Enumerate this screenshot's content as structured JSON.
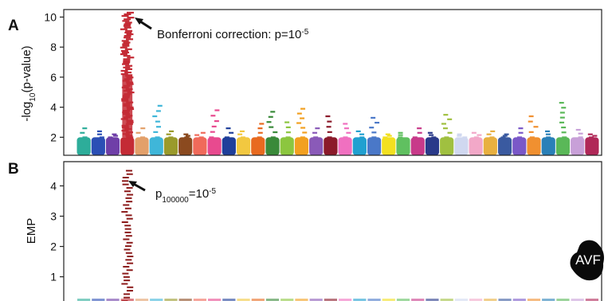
{
  "chart_data": [
    {
      "panel": "A",
      "type": "scatter",
      "subtype": "manhattan",
      "ylabel": "-log10(p-value)",
      "ylabel_parts": {
        "pre": "-log",
        "sub": "10",
        "post": "(p-value)"
      },
      "ylim": [
        0.8,
        10.5
      ],
      "yticks": [
        2,
        4,
        6,
        8,
        10
      ],
      "grid": false,
      "annotation": {
        "base": "Bonferroni correction: p=10",
        "sup": "-5"
      },
      "series": [
        {
          "color": "#2dad9a",
          "peak": 2.6
        },
        {
          "color": "#2b4fb5",
          "peak": 2.4
        },
        {
          "color": "#6f3fa8",
          "peak": 2.2
        },
        {
          "color": "#c42b35",
          "peak": 10.3
        },
        {
          "color": "#e3a06a",
          "peak": 2.6
        },
        {
          "color": "#3fb6d9",
          "peak": 4.1
        },
        {
          "color": "#9a9a2b",
          "peak": 2.4
        },
        {
          "color": "#8b4a1f",
          "peak": 2.2
        },
        {
          "color": "#f06a5a",
          "peak": 2.3
        },
        {
          "color": "#e84a8f",
          "peak": 3.8
        },
        {
          "color": "#1f3f9a",
          "peak": 2.6
        },
        {
          "color": "#f2c840",
          "peak": 2.4
        },
        {
          "color": "#e86a20",
          "peak": 2.9
        },
        {
          "color": "#3a8a3a",
          "peak": 3.7
        },
        {
          "color": "#8cc63f",
          "peak": 3.0
        },
        {
          "color": "#f2a020",
          "peak": 3.9
        },
        {
          "color": "#8a5ab8",
          "peak": 2.6
        },
        {
          "color": "#8b1a2a",
          "peak": 3.4
        },
        {
          "color": "#f070c0",
          "peak": 2.9
        },
        {
          "color": "#20a0d0",
          "peak": 2.4
        },
        {
          "color": "#4a78c8",
          "peak": 3.3
        },
        {
          "color": "#f2e020",
          "peak": 2.2
        },
        {
          "color": "#60c060",
          "peak": 2.3
        },
        {
          "color": "#c83a8a",
          "peak": 2.6
        },
        {
          "color": "#2a3a8a",
          "peak": 2.3
        },
        {
          "color": "#a0c040",
          "peak": 3.5
        },
        {
          "color": "#d0d8f0",
          "peak": 2.2
        },
        {
          "color": "#f2a8c8",
          "peak": 2.3
        },
        {
          "color": "#e8b040",
          "peak": 2.4
        },
        {
          "color": "#3a5aa0",
          "peak": 2.2
        },
        {
          "color": "#7a58c8",
          "peak": 2.6
        },
        {
          "color": "#f09030",
          "peak": 3.4
        },
        {
          "color": "#2a80b8",
          "peak": 2.4
        },
        {
          "color": "#5ab858",
          "peak": 4.3
        },
        {
          "color": "#c8a0d8",
          "peak": 2.5
        },
        {
          "color": "#b02858",
          "peak": 2.2
        }
      ]
    },
    {
      "panel": "B",
      "type": "scatter",
      "ylabel": "EMP",
      "ylim": [
        0.2,
        4.8
      ],
      "yticks": [
        1,
        2,
        3,
        4
      ],
      "grid": false,
      "annotation": {
        "base": "p",
        "sub": "100000",
        "post": "=10",
        "sup": "-5"
      },
      "peak": {
        "series_index": 3,
        "color": "#8b1a1a",
        "value": 4.5
      }
    }
  ],
  "logo": {
    "text": "AVF"
  }
}
